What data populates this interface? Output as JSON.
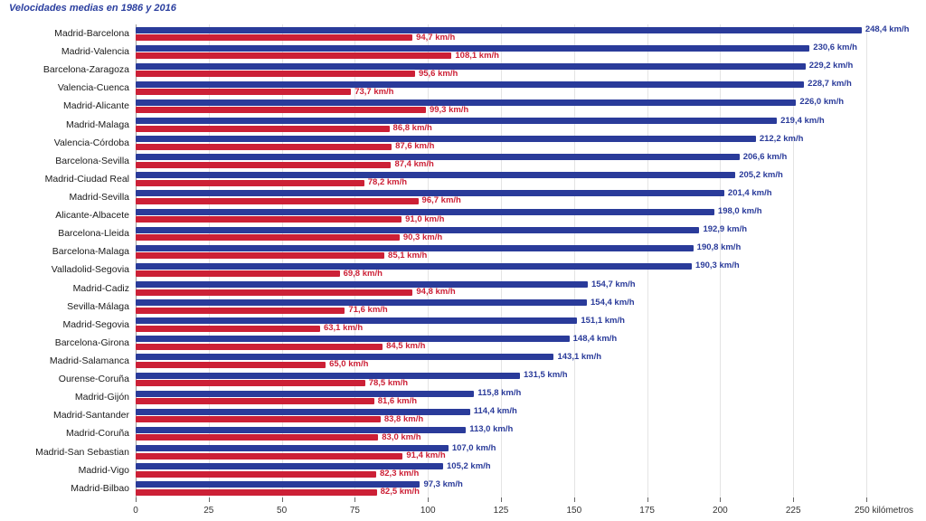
{
  "title": "Velocidades medias en 1986 y 2016",
  "colors": {
    "series_2016": "#2a3b9a",
    "series_1986": "#cc2036",
    "title_text": "#2b3f9f",
    "gridline": "#e4e4e4"
  },
  "chart_data": {
    "type": "bar",
    "orientation": "horizontal",
    "title": "Velocidades medias en 1986 y 2016",
    "xlabel": "kilómetros",
    "xlim": [
      0,
      250
    ],
    "grid": true,
    "legend": "none (series identified by title: 1986 red, 2016 blue)",
    "xticks": [
      0,
      25,
      50,
      75,
      100,
      125,
      150,
      175,
      200,
      225,
      250
    ],
    "xtick_labels": [
      "0",
      "25",
      "50",
      "75",
      "100",
      "125",
      "150",
      "175",
      "200",
      "225",
      "250 kilómetros"
    ],
    "categories": [
      "Madrid-Barcelona",
      "Madrid-Valencia",
      "Barcelona-Zaragoza",
      "Valencia-Cuenca",
      "Madrid-Alicante",
      "Madrid-Malaga",
      "Valencia-Córdoba",
      "Barcelona-Sevilla",
      "Madrid-Ciudad Real",
      "Madrid-Sevilla",
      "Alicante-Albacete",
      "Barcelona-Lleida",
      "Barcelona-Malaga",
      "Valladolid-Segovia",
      "Madrid-Cadiz",
      "Sevilla-Málaga",
      "Madrid-Segovia",
      "Barcelona-Girona",
      "Madrid-Salamanca",
      "Ourense-Coruña",
      "Madrid-Gijón",
      "Madrid-Santander",
      "Madrid-Coruña",
      "Madrid-San Sebastian",
      "Madrid-Vigo",
      "Madrid-Bilbao"
    ],
    "series": [
      {
        "name": "2016",
        "color": "#2a3b9a",
        "values": [
          248.4,
          230.6,
          229.2,
          228.7,
          226.0,
          219.4,
          212.2,
          206.6,
          205.2,
          201.4,
          198.0,
          192.9,
          190.8,
          190.3,
          154.7,
          154.4,
          151.1,
          148.4,
          143.1,
          131.5,
          115.8,
          114.4,
          113.0,
          107.0,
          105.2,
          97.3
        ],
        "labels": [
          "248,4 km/h",
          "230,6 km/h",
          "229,2 km/h",
          "228,7 km/h",
          "226,0 km/h",
          "219,4 km/h",
          "212,2 km/h",
          "206,6 km/h",
          "205,2 km/h",
          "201,4 km/h",
          "198,0 km/h",
          "192,9 km/h",
          "190,8 km/h",
          "190,3 km/h",
          "154,7 km/h",
          "154,4 km/h",
          "151,1 km/h",
          "148,4 km/h",
          "143,1 km/h",
          "131,5 km/h",
          "115,8 km/h",
          "114,4 km/h",
          "113,0 km/h",
          "107,0 km/h",
          "105,2 km/h",
          "97,3 km/h"
        ]
      },
      {
        "name": "1986",
        "color": "#cc2036",
        "values": [
          94.7,
          108.1,
          95.6,
          73.7,
          99.3,
          86.8,
          87.6,
          87.4,
          78.2,
          96.7,
          91.0,
          90.3,
          85.1,
          69.8,
          94.8,
          71.6,
          63.1,
          84.5,
          65.0,
          78.5,
          81.6,
          83.8,
          83.0,
          91.4,
          82.3,
          82.5
        ],
        "labels": [
          "94,7 km/h",
          "108,1 km/h",
          "95,6 km/h",
          "73,7 km/h",
          "99,3 km/h",
          "86,8 km/h",
          "87,6 km/h",
          "87,4 km/h",
          "78,2 km/h",
          "96,7 km/h",
          "91,0 km/h",
          "90,3 km/h",
          "85,1 km/h",
          "69,8 km/h",
          "94,8 km/h",
          "71,6 km/h",
          "63,1 km/h",
          "84,5 km/h",
          "65,0 km/h",
          "78,5 km/h",
          "81,6 km/h",
          "83,8 km/h",
          "83,0 km/h",
          "91,4 km/h",
          "82,3 km/h",
          "82,5 km/h"
        ]
      }
    ]
  }
}
